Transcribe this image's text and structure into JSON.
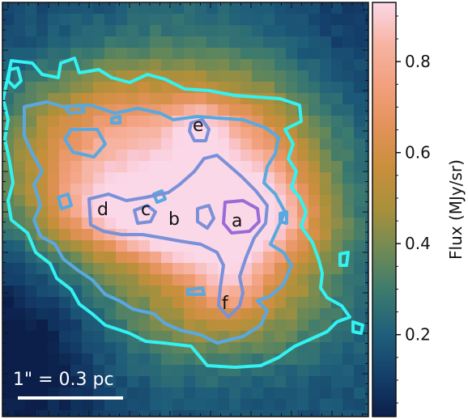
{
  "image": {
    "colormap": [
      "#0b1f4a",
      "#14406b",
      "#1f5f7a",
      "#3b7a6f",
      "#6f8a55",
      "#a8903c",
      "#c98f3c",
      "#e3925a",
      "#f2a07d",
      "#f7b4a3",
      "#f9c6cf",
      "#fbd8e8"
    ],
    "contour_colors": {
      "outer": "#33f2f2",
      "middle": "#5aa8e0",
      "inner": "#7a90d8",
      "core": "#9a6ad6"
    }
  },
  "sources": [
    {
      "id": "a",
      "label": "a"
    },
    {
      "id": "b",
      "label": "b"
    },
    {
      "id": "c",
      "label": "c"
    },
    {
      "id": "d",
      "label": "d"
    },
    {
      "id": "e",
      "label": "e"
    },
    {
      "id": "f",
      "label": "f"
    }
  ],
  "scalebar": {
    "label": "1\" = 0.3 pc"
  },
  "colorbar": {
    "title": "Flux (MJy/sr)",
    "range": [
      0.02,
      0.93
    ],
    "ticks": [
      "0.2",
      "0.4",
      "0.6",
      "0.8"
    ],
    "tick_values": [
      0.2,
      0.4,
      0.6,
      0.8
    ]
  }
}
